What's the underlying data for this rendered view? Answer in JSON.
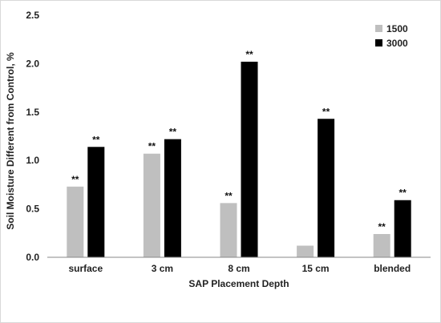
{
  "chart_data": {
    "type": "bar",
    "title": "",
    "xlabel": "SAP Placement Depth",
    "ylabel": "Soil Moisture Different from Control, %",
    "ylim": [
      0,
      2.5
    ],
    "yticks": [
      "0.0",
      "0.5",
      "1.0",
      "1.5",
      "2.0",
      "2.5"
    ],
    "ytick_values": [
      0,
      0.5,
      1.0,
      1.5,
      2.0,
      2.5
    ],
    "grid": false,
    "legend_position": "top-right",
    "categories": [
      "surface",
      "3 cm",
      "8 cm",
      "15 cm",
      "blended"
    ],
    "series": [
      {
        "name": "1500",
        "color": "#bfbfbf",
        "values": [
          0.73,
          1.07,
          0.56,
          0.12,
          0.24
        ],
        "labels": [
          "**",
          "**",
          "**",
          "",
          "**"
        ]
      },
      {
        "name": "3000",
        "color": "#000000",
        "values": [
          1.14,
          1.22,
          2.02,
          1.43,
          0.59
        ],
        "labels": [
          "**",
          "**",
          "**",
          "**",
          "**"
        ]
      }
    ]
  }
}
